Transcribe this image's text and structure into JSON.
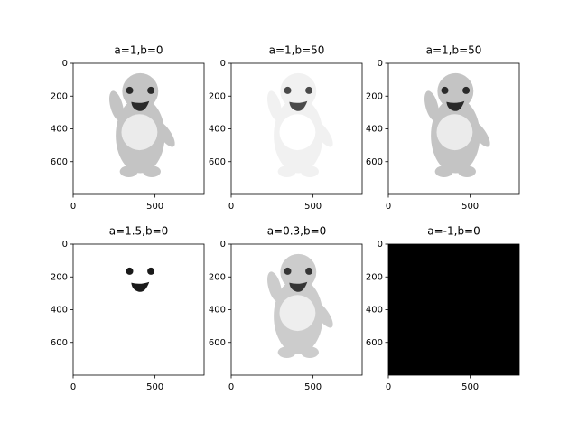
{
  "chart_data": [
    {
      "type": "image",
      "title": "a=1,b=0",
      "xlim": [
        0,
        800
      ],
      "ylim": [
        800,
        0
      ],
      "xticks": [
        0,
        500
      ],
      "yticks": [
        0,
        200,
        400,
        600
      ]
    },
    {
      "type": "image",
      "title": "a=1,b=50",
      "xlim": [
        0,
        800
      ],
      "ylim": [
        800,
        0
      ],
      "xticks": [
        0,
        500
      ],
      "yticks": [
        0,
        200,
        400,
        600
      ]
    },
    {
      "type": "image",
      "title": "a=1,b=50",
      "xlim": [
        0,
        800
      ],
      "ylim": [
        800,
        0
      ],
      "xticks": [
        0,
        500
      ],
      "yticks": [
        0,
        200,
        400,
        600
      ]
    },
    {
      "type": "image",
      "title": "a=1.5,b=0",
      "xlim": [
        0,
        800
      ],
      "ylim": [
        800,
        0
      ],
      "xticks": [
        0,
        500
      ],
      "yticks": [
        0,
        200,
        400,
        600
      ]
    },
    {
      "type": "image",
      "title": "a=0.3,b=0",
      "xlim": [
        0,
        800
      ],
      "ylim": [
        800,
        0
      ],
      "xticks": [
        0,
        500
      ],
      "yticks": [
        0,
        200,
        400,
        600
      ]
    },
    {
      "type": "image",
      "title": "a=-1,b=0",
      "xlim": [
        0,
        800
      ],
      "ylim": [
        800,
        0
      ],
      "xticks": [
        0,
        500
      ],
      "yticks": [
        0,
        200,
        400,
        600
      ]
    }
  ]
}
